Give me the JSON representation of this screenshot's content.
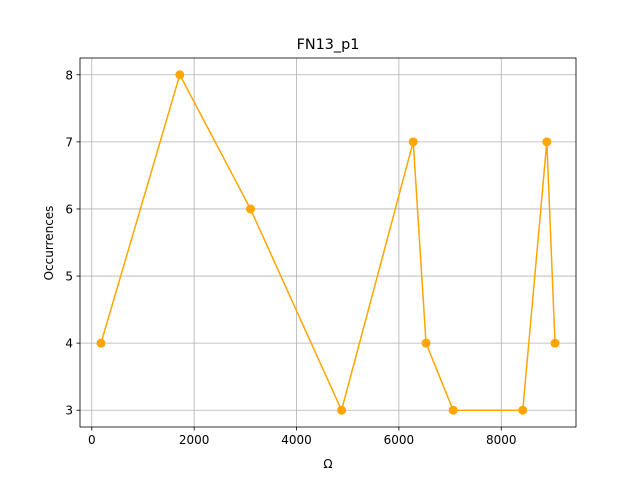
{
  "chart_data": {
    "type": "line",
    "title": "FN13_p1",
    "xlabel": "Ω",
    "ylabel": "Occurrences",
    "x": [
      180,
      1720,
      3100,
      4880,
      6280,
      6530,
      7060,
      8420,
      8890,
      9050
    ],
    "y": [
      4,
      8,
      6,
      3,
      7,
      4,
      3,
      3,
      7,
      4
    ],
    "xlim": [
      -230,
      9460
    ],
    "ylim": [
      2.75,
      8.25
    ],
    "xticks": [
      0,
      2000,
      4000,
      6000,
      8000
    ],
    "xtick_labels": [
      "0",
      "2000",
      "4000",
      "6000",
      "8000"
    ],
    "yticks": [
      3,
      4,
      5,
      6,
      7,
      8
    ],
    "ytick_labels": [
      "3",
      "4",
      "5",
      "6",
      "7",
      "8"
    ],
    "grid": true,
    "line_color": "#ffa500",
    "marker": "circle"
  }
}
